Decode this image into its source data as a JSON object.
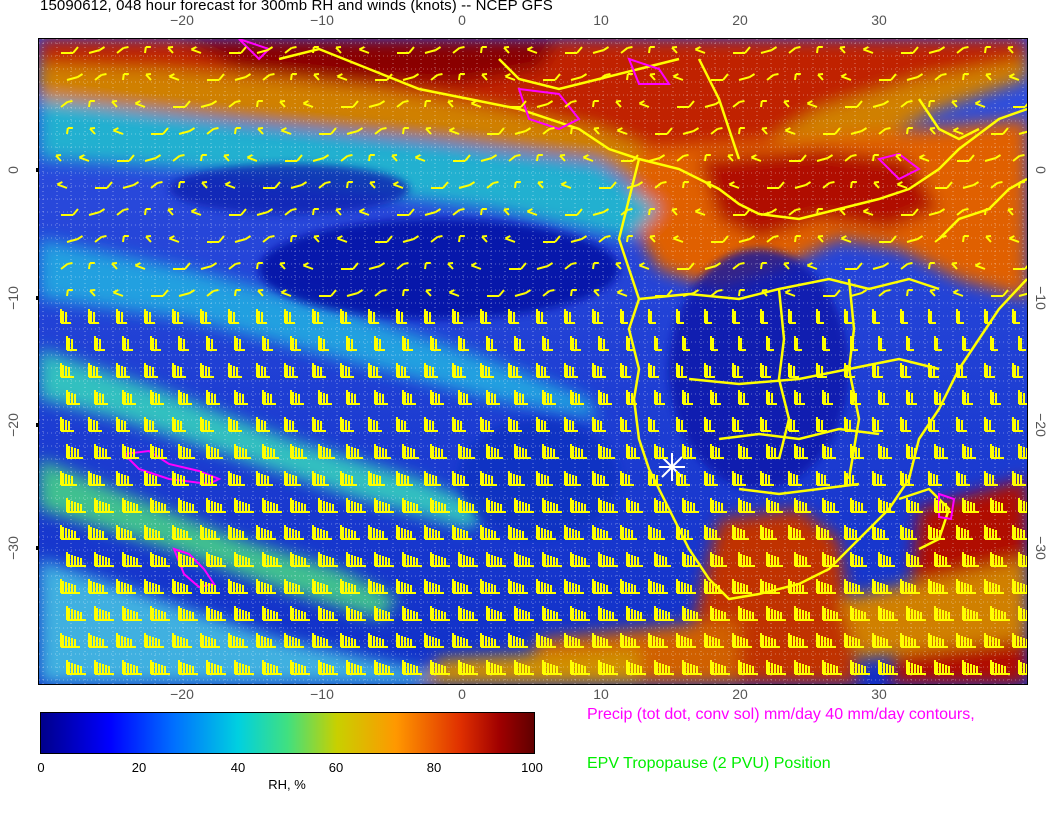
{
  "title": "15090612, 048 hour forecast for 300mb RH and winds (knots) -- NCEP GFS",
  "axes": {
    "lon_ticks": [
      "−20",
      "−10",
      "0",
      "10",
      "20",
      "30"
    ],
    "lat_ticks_left": [
      "0",
      "−10",
      "−20",
      "−30"
    ],
    "lat_ticks_right": [
      "0",
      "−10",
      "−20",
      "−30"
    ]
  },
  "colorbar": {
    "ticks": [
      "0",
      "20",
      "40",
      "60",
      "80",
      "100"
    ],
    "label": "RH, %"
  },
  "legend": {
    "precip": "Precip (tot dot, conv sol) mm/day 40 mm/day contours,",
    "epv": "EPV Tropopause (2 PVU) Position"
  },
  "colors": {
    "humid": "#b01000",
    "dry": "#0010c0",
    "wind_barbs": "#ffff00",
    "coastlines": "#ffff00",
    "precip_contours": "#ff00ff",
    "epv_text": "#00ee00"
  }
}
